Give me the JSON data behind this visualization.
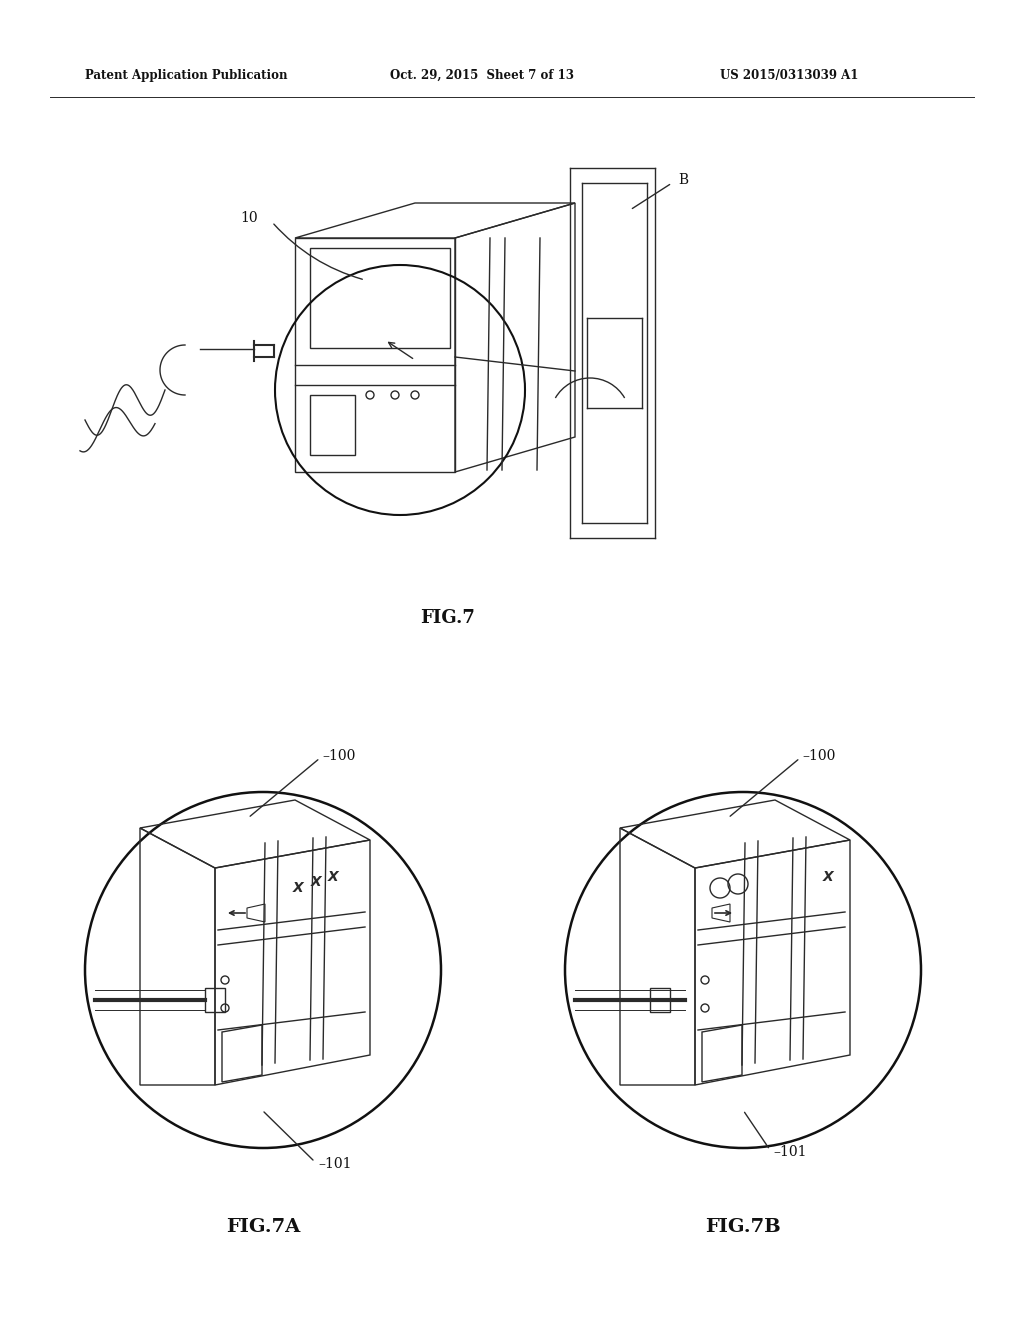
{
  "bg_color": "#ffffff",
  "header_left": "Patent Application Publication",
  "header_mid": "Oct. 29, 2015  Sheet 7 of 13",
  "header_right": "US 2015/0313039 A1",
  "fig7_label": "FIG.7",
  "fig7a_label": "FIG.7A",
  "fig7b_label": "FIG.7B",
  "label_10": "10",
  "label_B": "B",
  "label_100_A": "100",
  "label_100_B": "100",
  "label_101_A": "101",
  "label_101_B": "101",
  "line_color": "#2a2a2a",
  "lw": 1.0
}
